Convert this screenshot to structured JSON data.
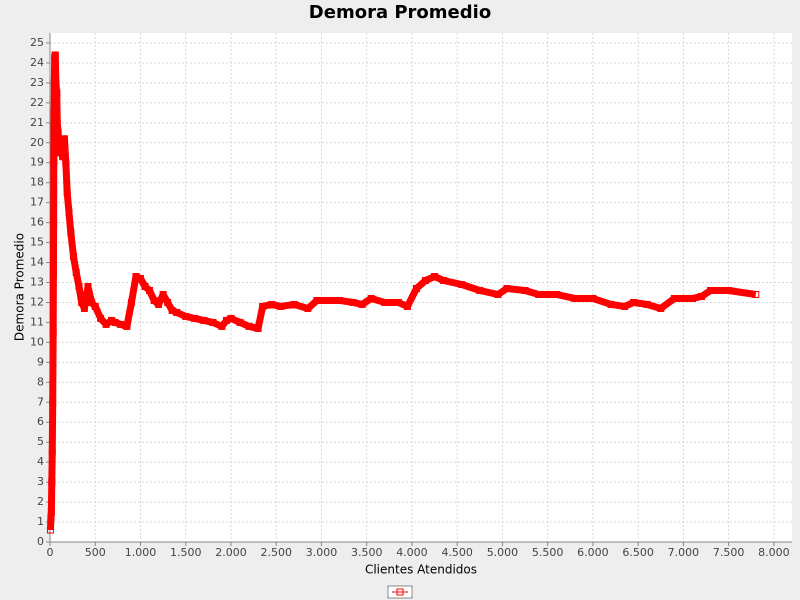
{
  "chart_data": {
    "type": "line",
    "title": "Demora Promedio",
    "x_label": "Clientes Atendidos",
    "y_label": "Demora Promedio",
    "xlim": [
      0,
      8200
    ],
    "ylim": [
      0,
      25.5
    ],
    "xticks": [
      0,
      500,
      {
        "value": 1000,
        "label": "1.000"
      },
      {
        "value": 1500,
        "label": "1.500"
      },
      {
        "value": 2000,
        "label": "2.000"
      },
      {
        "value": 2500,
        "label": "2.500"
      },
      {
        "value": 3000,
        "label": "3.000"
      },
      {
        "value": 3500,
        "label": "3.500"
      },
      {
        "value": 4000,
        "label": "4.000"
      },
      {
        "value": 4500,
        "label": "4.500"
      },
      {
        "value": 5000,
        "label": "5.000"
      },
      {
        "value": 5500,
        "label": "5.500"
      },
      {
        "value": 6000,
        "label": "6.000"
      },
      {
        "value": 6500,
        "label": "6.500"
      },
      {
        "value": 7000,
        "label": "7.000"
      },
      {
        "value": 7500,
        "label": "7.500"
      },
      {
        "value": 8000,
        "label": "8.000"
      }
    ],
    "yticks": [
      0,
      1,
      2,
      3,
      4,
      5,
      6,
      7,
      8,
      9,
      10,
      11,
      12,
      13,
      14,
      15,
      16,
      17,
      18,
      19,
      20,
      21,
      22,
      23,
      24,
      25
    ],
    "grid": true,
    "series": [
      {
        "color": "#ff0000",
        "x": [
          5,
          10,
          15,
          20,
          25,
          30,
          35,
          38,
          40,
          42,
          45,
          48,
          52,
          58,
          65,
          75,
          80,
          90,
          100,
          120,
          140,
          160,
          175,
          190,
          210,
          230,
          260,
          290,
          320,
          350,
          380,
          420,
          460,
          500,
          560,
          620,
          680,
          720,
          780,
          850,
          900,
          950,
          1000,
          1050,
          1100,
          1150,
          1200,
          1250,
          1300,
          1350,
          1400,
          1500,
          1600,
          1700,
          1800,
          1900,
          1950,
          2000,
          2100,
          2200,
          2300,
          2350,
          2450,
          2550,
          2700,
          2850,
          2950,
          3050,
          3200,
          3350,
          3450,
          3550,
          3700,
          3850,
          3950,
          4050,
          4150,
          4250,
          4350,
          4550,
          4750,
          4950,
          5050,
          5250,
          5400,
          5600,
          5800,
          6000,
          6200,
          6350,
          6450,
          6600,
          6750,
          6900,
          7100,
          7200,
          7300,
          7500,
          7800
        ],
        "values": [
          0.6,
          1.2,
          1.5,
          3,
          4.5,
          7,
          10.5,
          13.5,
          16,
          19,
          21.5,
          23,
          24.3,
          24.4,
          23,
          22.5,
          21,
          20.5,
          19.5,
          20,
          19.3,
          20.2,
          19,
          17.5,
          16.5,
          15.5,
          14.3,
          13.5,
          12.8,
          12,
          11.7,
          12.8,
          12,
          11.8,
          11.2,
          10.9,
          11.1,
          11,
          10.9,
          10.8,
          12,
          13.3,
          13.2,
          12.8,
          12.6,
          12.1,
          11.9,
          12.4,
          12,
          11.6,
          11.5,
          11.3,
          11.2,
          11.1,
          11,
          10.8,
          11.1,
          11.2,
          11,
          10.8,
          10.7,
          11.8,
          11.9,
          11.8,
          11.9,
          11.7,
          12.1,
          12.1,
          12.1,
          12,
          11.9,
          12.2,
          12,
          12,
          11.8,
          12.7,
          13.1,
          13.3,
          13.1,
          12.9,
          12.6,
          12.4,
          12.7,
          12.6,
          12.4,
          12.4,
          12.2,
          12.2,
          11.9,
          11.8,
          12,
          11.9,
          11.7,
          12.2,
          12.2,
          12.3,
          12.6,
          12.6,
          12.4
        ]
      }
    ]
  }
}
